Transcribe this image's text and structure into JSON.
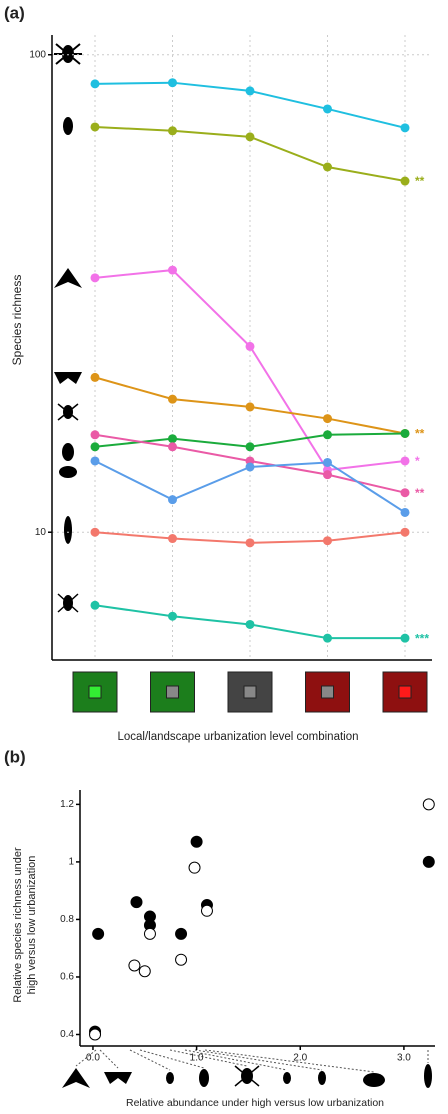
{
  "chart_data": [
    {
      "type": "line",
      "panel": "(a)",
      "ylabel": "Species richness",
      "xlabel": "Local/landscape urbanization level combination",
      "categories": [
        null,
        null,
        null,
        null,
        null
      ],
      "log_y": true,
      "ylim": [
        5.4,
        110
      ],
      "yticks": [
        10,
        100
      ],
      "grid": true,
      "series": [
        {
          "color": "#1fbfe0",
          "values": [
            86.9,
            87.4,
            84,
            77,
            70.3
          ]
        },
        {
          "color": "#9aae1b",
          "values": [
            70.6,
            69.3,
            67.3,
            58.2,
            54.4
          ],
          "annotation": "**"
        },
        {
          "color": "#f272e8",
          "values": [
            34.1,
            35.4,
            24.5,
            13.5,
            14.1
          ],
          "annotation": "*"
        },
        {
          "color": "#dd9418",
          "values": [
            21.1,
            19.0,
            18.3,
            17.3,
            16.1
          ],
          "annotation": "**"
        },
        {
          "color": "#1bab3c",
          "values": [
            15.1,
            15.7,
            15.1,
            16.0,
            16.1
          ]
        },
        {
          "color": "#ea5aa6",
          "values": [
            16.0,
            15.1,
            14.1,
            13.2,
            12.1
          ],
          "annotation": "**"
        },
        {
          "color": "#5a9de9",
          "values": [
            14.1,
            11.7,
            13.7,
            14.0,
            11.0
          ]
        },
        {
          "color": "#f3786c",
          "values": [
            10.0,
            9.7,
            9.5,
            9.6,
            10.0
          ]
        },
        {
          "color": "#1fc2a5",
          "values": [
            7.03,
            6.67,
            6.41,
            6.0,
            6.0
          ],
          "annotation": "***"
        }
      ]
    },
    {
      "type": "scatter",
      "panel": "(b)",
      "ylabel": [
        "Relative species richness under",
        "high versus low urbanization"
      ],
      "xlabel": "Relative abundance under high versus low urbanization",
      "xlim": [
        -0.125,
        3.3
      ],
      "ylim": [
        0.36,
        1.25
      ],
      "xticks": [
        {
          "value": 0,
          "label": "0.0"
        },
        {
          "value": 1,
          "label": "1.0"
        },
        {
          "value": 2,
          "label": "2.0"
        },
        {
          "value": 3,
          "label": "3.0"
        }
      ],
      "yticks": [
        0.4,
        0.6,
        0.8,
        1.0,
        1.2
      ],
      "series": [
        {
          "marker": "filled",
          "color": "#000000",
          "x": [
            0.02,
            0.05,
            0.42,
            0.55,
            0.55,
            0.85,
            1.0,
            1.1,
            3.24
          ],
          "values": [
            0.41,
            0.75,
            0.86,
            0.78,
            0.81,
            0.75,
            1.07,
            0.85,
            1.0
          ]
        },
        {
          "marker": "open",
          "color": "#000000",
          "x": [
            0.02,
            0.4,
            0.5,
            0.55,
            0.85,
            0.98,
            1.1,
            3.24
          ],
          "values": [
            0.4,
            0.64,
            0.62,
            0.75,
            0.66,
            0.98,
            0.83,
            1.2
          ]
        }
      ]
    }
  ]
}
